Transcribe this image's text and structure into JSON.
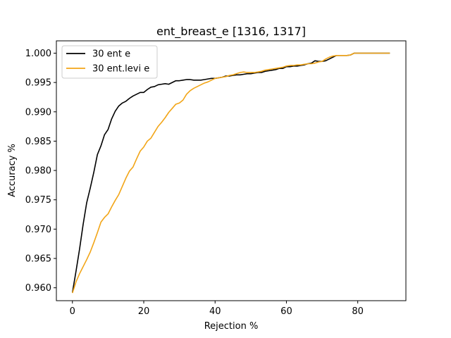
{
  "chart_data": {
    "type": "line",
    "title": "ent_breast_e  [1316, 1317]",
    "xlabel": "Rejection %",
    "ylabel": "Accuracy %",
    "xlim": [
      -4.5,
      93.5
    ],
    "ylim": [
      0.9578,
      1.0021
    ],
    "xticks": [
      0,
      20,
      40,
      60,
      80
    ],
    "yticks": [
      0.96,
      0.965,
      0.97,
      0.975,
      0.98,
      0.985,
      0.99,
      0.995,
      1.0
    ],
    "ytick_labels": [
      "0.960",
      "0.965",
      "0.970",
      "0.975",
      "0.980",
      "0.985",
      "0.990",
      "0.995",
      "1.000"
    ],
    "grid": false,
    "legend_position": "top-left",
    "series": [
      {
        "name": "30 ent e",
        "color": "#000000",
        "x": [
          0,
          1,
          2,
          3,
          4,
          5,
          6,
          7,
          8,
          9,
          10,
          11,
          12,
          13,
          14,
          15,
          16,
          17,
          18,
          19,
          20,
          21,
          22,
          23,
          24,
          25,
          26,
          27,
          28,
          29,
          30,
          31,
          32,
          33,
          34,
          35,
          36,
          37,
          38,
          39,
          40,
          41,
          42,
          43,
          44,
          45,
          46,
          47,
          48,
          49,
          50,
          51,
          52,
          53,
          54,
          55,
          56,
          57,
          58,
          59,
          60,
          61,
          62,
          63,
          64,
          65,
          66,
          67,
          68,
          69,
          70,
          71,
          72,
          73,
          74,
          75,
          76,
          77,
          78,
          79,
          80,
          81,
          82,
          83,
          84,
          85,
          86,
          87,
          88,
          89
        ],
        "y": [
          0.9592,
          0.9628,
          0.9666,
          0.9708,
          0.9745,
          0.977,
          0.9797,
          0.9827,
          0.9842,
          0.9861,
          0.987,
          0.9888,
          0.9901,
          0.991,
          0.9915,
          0.9918,
          0.9923,
          0.9927,
          0.993,
          0.9933,
          0.9933,
          0.9938,
          0.9942,
          0.9943,
          0.9946,
          0.9947,
          0.9948,
          0.9947,
          0.995,
          0.9953,
          0.9953,
          0.9954,
          0.9955,
          0.9955,
          0.9954,
          0.9954,
          0.9954,
          0.9955,
          0.9956,
          0.9957,
          0.9957,
          0.9958,
          0.9959,
          0.9961,
          0.9961,
          0.9962,
          0.9963,
          0.9963,
          0.9964,
          0.9965,
          0.9965,
          0.9966,
          0.9967,
          0.9967,
          0.9969,
          0.997,
          0.9971,
          0.9972,
          0.9974,
          0.9974,
          0.9977,
          0.9977,
          0.9978,
          0.9978,
          0.9979,
          0.998,
          0.9982,
          0.9983,
          0.9987,
          0.9986,
          0.9986,
          0.9987,
          0.999,
          0.9993,
          0.9996,
          0.9996,
          0.9996,
          0.9996,
          0.9997,
          1.0,
          1.0,
          1.0,
          1.0,
          1.0,
          1.0,
          1.0,
          1.0,
          1.0,
          1.0,
          1.0
        ]
      },
      {
        "name": "30 ent.levi e",
        "color": "#f2a517",
        "x": [
          0,
          1,
          2,
          3,
          4,
          5,
          6,
          7,
          8,
          9,
          10,
          11,
          12,
          13,
          14,
          15,
          16,
          17,
          18,
          19,
          20,
          21,
          22,
          23,
          24,
          25,
          26,
          27,
          28,
          29,
          30,
          31,
          32,
          33,
          34,
          35,
          36,
          37,
          38,
          39,
          40,
          41,
          42,
          43,
          44,
          45,
          46,
          47,
          48,
          49,
          50,
          51,
          52,
          53,
          54,
          55,
          56,
          57,
          58,
          59,
          60,
          61,
          62,
          63,
          64,
          65,
          66,
          67,
          68,
          69,
          70,
          71,
          72,
          73,
          74,
          75,
          76,
          77,
          78,
          79,
          80,
          81,
          82,
          83,
          84,
          85,
          86,
          87,
          88,
          89
        ],
        "y": [
          0.9591,
          0.961,
          0.9624,
          0.9636,
          0.9648,
          0.9661,
          0.9677,
          0.9694,
          0.9712,
          0.972,
          0.9726,
          0.9738,
          0.9749,
          0.9759,
          0.9773,
          0.9787,
          0.9799,
          0.9806,
          0.982,
          0.9833,
          0.984,
          0.985,
          0.9855,
          0.9865,
          0.9875,
          0.9882,
          0.989,
          0.9899,
          0.9906,
          0.9913,
          0.9915,
          0.992,
          0.993,
          0.9936,
          0.994,
          0.9943,
          0.9946,
          0.9949,
          0.9951,
          0.9954,
          0.9957,
          0.9958,
          0.9959,
          0.996,
          0.9962,
          0.9963,
          0.9965,
          0.9967,
          0.9968,
          0.9967,
          0.9967,
          0.9967,
          0.9968,
          0.9969,
          0.9971,
          0.9972,
          0.9973,
          0.9974,
          0.9975,
          0.9976,
          0.9978,
          0.9979,
          0.9979,
          0.998,
          0.998,
          0.9981,
          0.9982,
          0.9982,
          0.9983,
          0.9985,
          0.9986,
          0.999,
          0.9993,
          0.9995,
          0.9996,
          0.9996,
          0.9996,
          0.9996,
          0.9997,
          1.0,
          1.0,
          1.0,
          1.0,
          1.0,
          1.0,
          1.0,
          1.0,
          1.0,
          1.0,
          1.0
        ]
      }
    ]
  }
}
